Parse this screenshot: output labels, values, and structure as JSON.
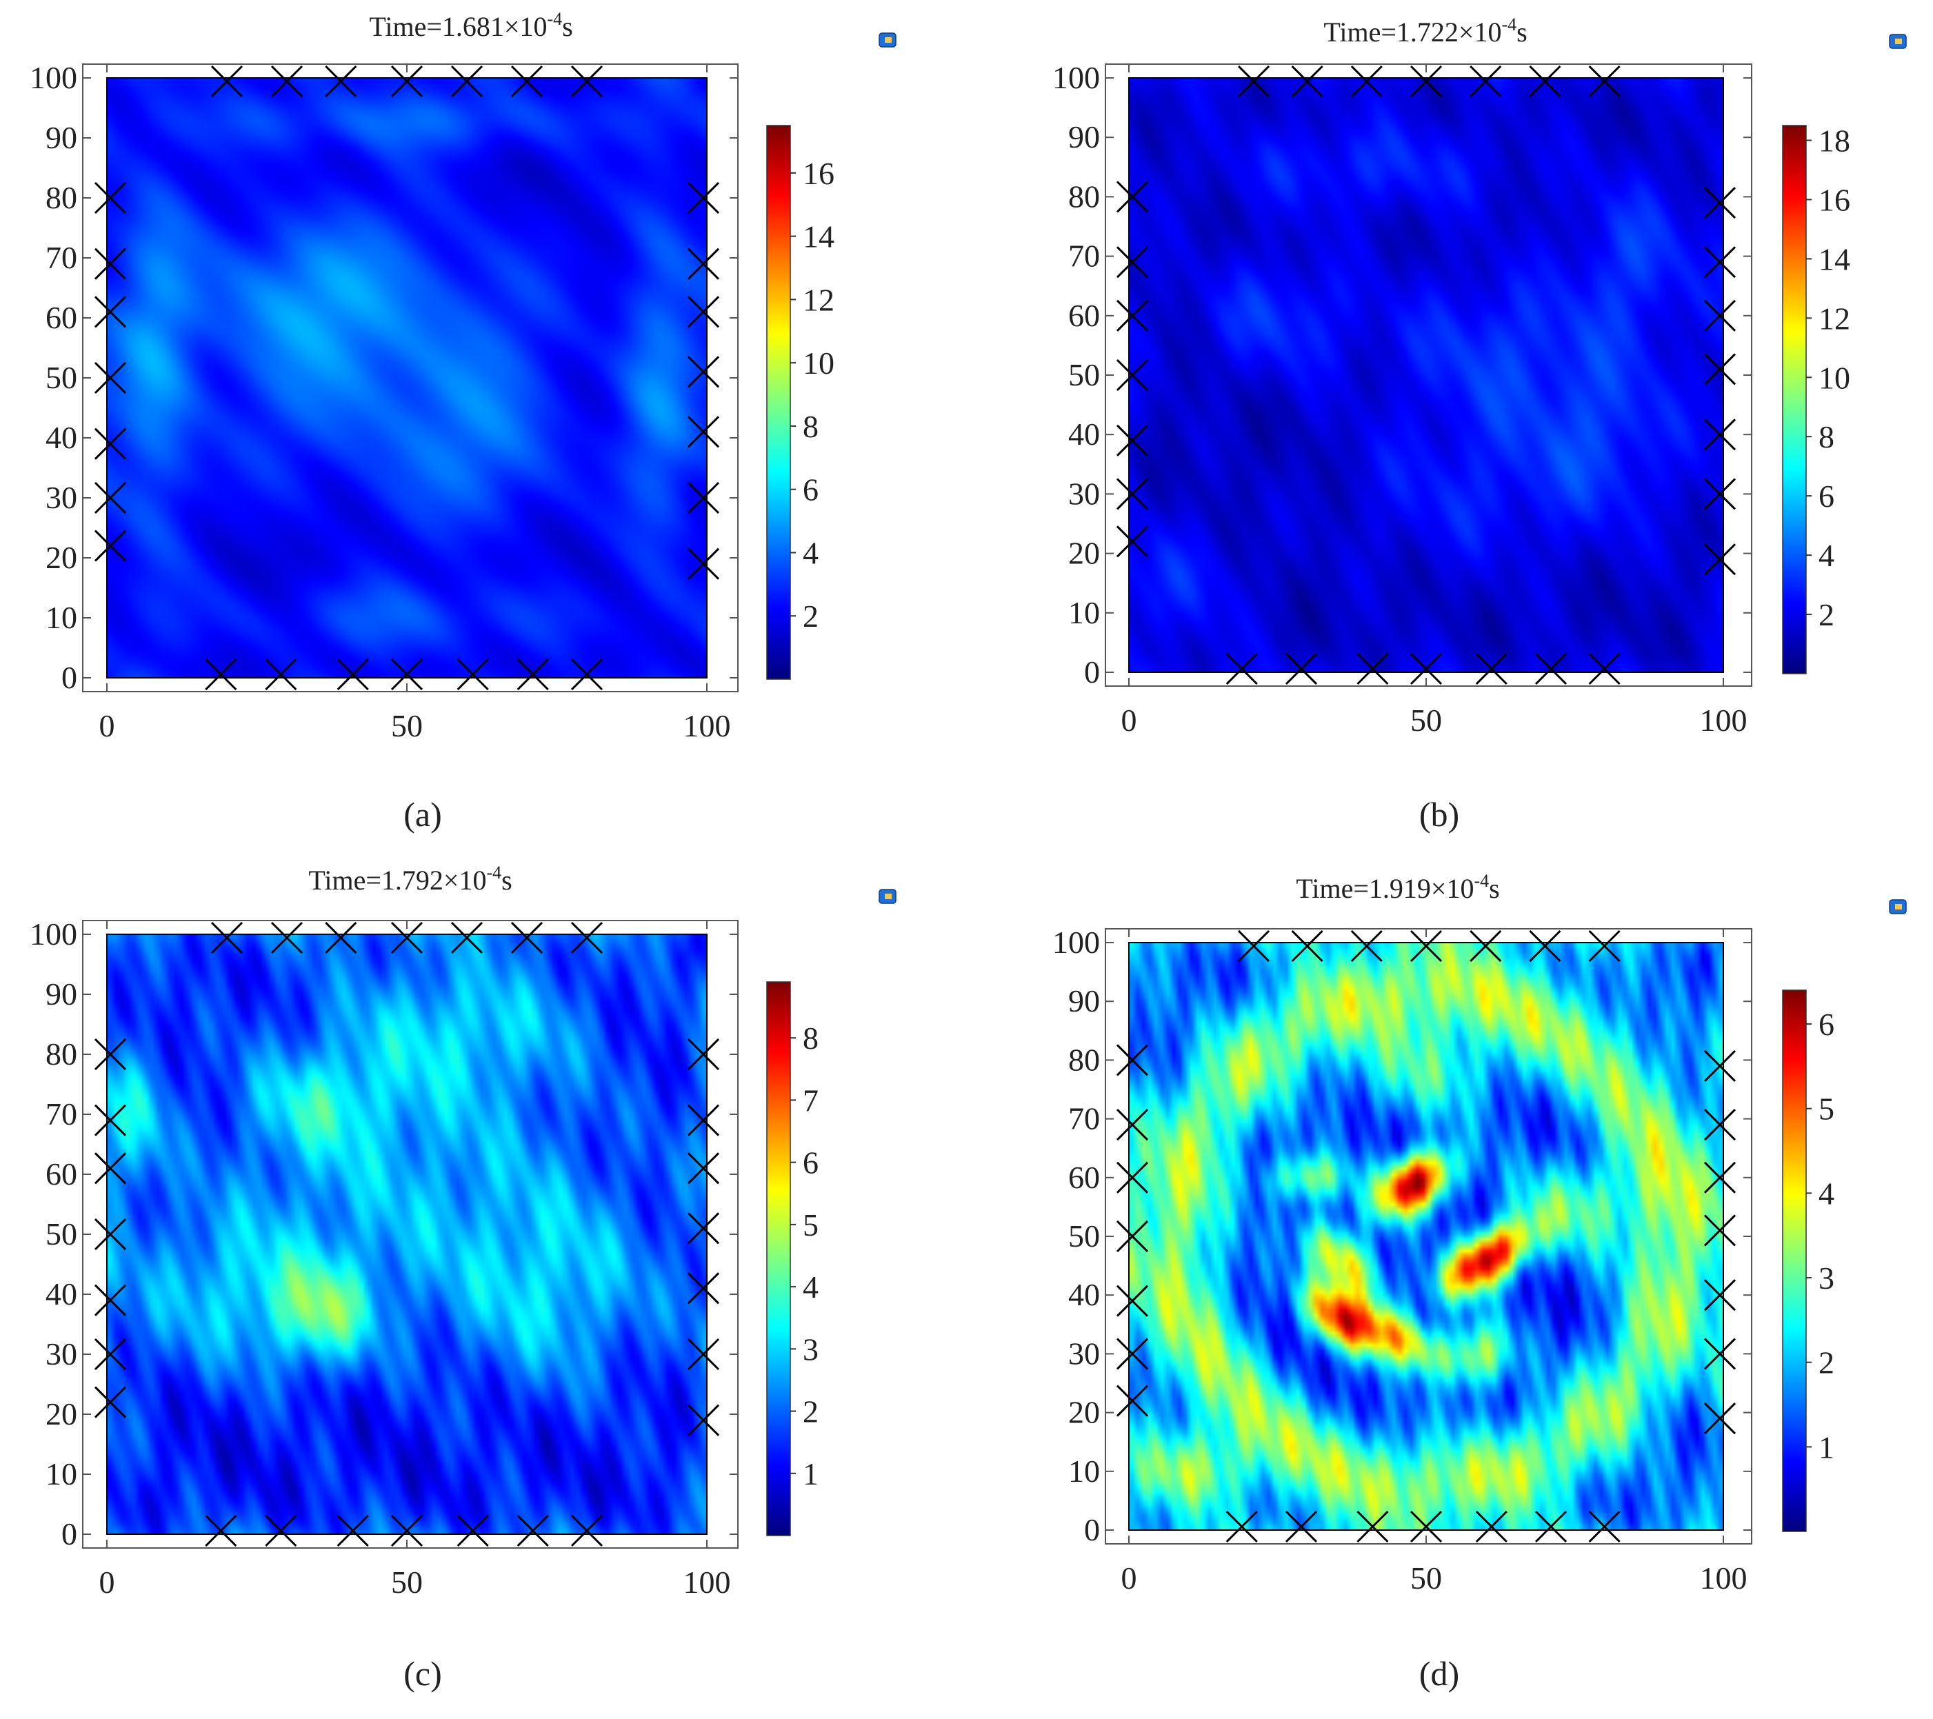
{
  "panels": [
    {
      "label": "(a)",
      "time_text": "Time=1.681×10",
      "time_exp": "-4",
      "time_unit": "s",
      "chart_data": {
        "type": "heatmap",
        "xlim": [
          0,
          100
        ],
        "ylim": [
          0,
          100
        ],
        "x_ticks": [
          0,
          50,
          100
        ],
        "y_ticks": [
          0,
          10,
          20,
          30,
          40,
          50,
          60,
          70,
          80,
          90,
          100
        ],
        "colorbar": {
          "min": 0,
          "max": 17.5,
          "ticks": [
            2,
            4,
            6,
            8,
            10,
            12,
            14,
            16
          ]
        },
        "value_range": [
          0,
          17.5
        ],
        "texture_seed": 1,
        "blobs": [
          {
            "x": 45,
            "y": 55,
            "sx": 24,
            "sy": 20,
            "v": 3.2
          },
          {
            "x": 30,
            "y": 65,
            "sx": 10,
            "sy": 8,
            "v": 1.5
          },
          {
            "x": 65,
            "y": 35,
            "sx": 10,
            "sy": 10,
            "v": 1.5
          },
          {
            "x": 50,
            "y": 10,
            "sx": 25,
            "sy": 5,
            "v": 2.0
          },
          {
            "x": 8,
            "y": 50,
            "sx": 5,
            "sy": 30,
            "v": 2.5
          },
          {
            "x": 92,
            "y": 50,
            "sx": 5,
            "sy": 30,
            "v": 2.5
          },
          {
            "x": 50,
            "y": 93,
            "sx": 30,
            "sy": 4,
            "v": 2.0
          }
        ],
        "top_markers": [
          20,
          30,
          39,
          50,
          60,
          70,
          80
        ],
        "bottom_markers": [
          19,
          29,
          41,
          50,
          61,
          71,
          80
        ],
        "left_markers": [
          80,
          69,
          61,
          50,
          39,
          30,
          22
        ],
        "right_markers": [
          80,
          69,
          61,
          51,
          41,
          30,
          19
        ]
      }
    },
    {
      "label": "(b)",
      "time_text": "Time=1.722×10",
      "time_exp": "-4",
      "time_unit": "s",
      "chart_data": {
        "type": "heatmap",
        "xlim": [
          0,
          100
        ],
        "ylim": [
          0,
          100
        ],
        "x_ticks": [
          0,
          50,
          100
        ],
        "y_ticks": [
          0,
          10,
          20,
          30,
          40,
          50,
          60,
          70,
          80,
          90,
          100
        ],
        "colorbar": {
          "min": 0,
          "max": 18.5,
          "ticks": [
            2,
            4,
            6,
            8,
            10,
            12,
            14,
            16,
            18
          ]
        },
        "value_range": [
          0,
          18.5
        ],
        "texture_seed": 2,
        "blobs": [
          {
            "x": 25,
            "y": 60,
            "sx": 10,
            "sy": 8,
            "v": 2.0
          },
          {
            "x": 60,
            "y": 55,
            "sx": 12,
            "sy": 10,
            "v": 2.0
          },
          {
            "x": 80,
            "y": 40,
            "sx": 10,
            "sy": 12,
            "v": 2.0
          },
          {
            "x": 85,
            "y": 70,
            "sx": 8,
            "sy": 10,
            "v": 2.0
          },
          {
            "x": 40,
            "y": 85,
            "sx": 20,
            "sy": 6,
            "v": 1.8
          },
          {
            "x": 55,
            "y": 30,
            "sx": 15,
            "sy": 10,
            "v": 1.5
          },
          {
            "x": 10,
            "y": 15,
            "sx": 8,
            "sy": 8,
            "v": 1.5
          }
        ],
        "top_markers": [
          21,
          30,
          40,
          50,
          60,
          70,
          80
        ],
        "bottom_markers": [
          19,
          29,
          41,
          50,
          61,
          71,
          80
        ],
        "left_markers": [
          80,
          69,
          60,
          50,
          39,
          30,
          22
        ],
        "right_markers": [
          79,
          69,
          60,
          51,
          40,
          30,
          19
        ]
      }
    },
    {
      "label": "(c)",
      "time_text": "Time=1.792×10",
      "time_exp": "-4",
      "time_unit": "s",
      "chart_data": {
        "type": "heatmap",
        "xlim": [
          0,
          100
        ],
        "ylim": [
          0,
          100
        ],
        "x_ticks": [
          0,
          50,
          100
        ],
        "y_ticks": [
          0,
          10,
          20,
          30,
          40,
          50,
          60,
          70,
          80,
          90,
          100
        ],
        "colorbar": {
          "min": 0,
          "max": 8.9,
          "ticks": [
            1,
            2,
            3,
            4,
            5,
            6,
            7,
            8
          ]
        },
        "value_range": [
          0,
          8.9
        ],
        "texture_seed": 3,
        "blobs": [
          {
            "x": 36,
            "y": 37,
            "sx": 6,
            "sy": 6,
            "v": 2.2
          },
          {
            "x": 20,
            "y": 40,
            "sx": 12,
            "sy": 10,
            "v": 1.5
          },
          {
            "x": 50,
            "y": 60,
            "sx": 25,
            "sy": 20,
            "v": 1.6
          },
          {
            "x": 35,
            "y": 72,
            "sx": 8,
            "sy": 6,
            "v": 1.4
          },
          {
            "x": 75,
            "y": 40,
            "sx": 12,
            "sy": 12,
            "v": 1.5
          },
          {
            "x": 60,
            "y": 85,
            "sx": 15,
            "sy": 8,
            "v": 1.4
          },
          {
            "x": 5,
            "y": 70,
            "sx": 4,
            "sy": 8,
            "v": 1.5
          }
        ],
        "top_markers": [
          20,
          30,
          39,
          50,
          60,
          70,
          80
        ],
        "bottom_markers": [
          19,
          29,
          41,
          50,
          61,
          71,
          80
        ],
        "left_markers": [
          80,
          69,
          61,
          50,
          39,
          30,
          22
        ],
        "right_markers": [
          80,
          69,
          61,
          51,
          41,
          30,
          19
        ]
      }
    },
    {
      "label": "(d)",
      "time_text": "Time=1.919×10",
      "time_exp": "-4",
      "time_unit": "s",
      "chart_data": {
        "type": "heatmap",
        "xlim": [
          0,
          100
        ],
        "ylim": [
          0,
          100
        ],
        "x_ticks": [
          0,
          50,
          100
        ],
        "y_ticks": [
          0,
          10,
          20,
          30,
          40,
          50,
          60,
          70,
          80,
          90,
          100
        ],
        "colorbar": {
          "min": 0,
          "max": 6.4,
          "ticks": [
            1,
            2,
            3,
            4,
            5,
            6
          ]
        },
        "value_range": [
          0,
          6.4
        ],
        "texture_seed": 4,
        "ring": {
          "cx": 50,
          "cy": 50,
          "r": 42,
          "w": 6,
          "v": 2.2
        },
        "blobs": [
          {
            "x": 48,
            "y": 59,
            "sx": 5,
            "sy": 3.2,
            "v": 5.2,
            "rot": -35
          },
          {
            "x": 60,
            "y": 46,
            "sx": 6,
            "sy": 3,
            "v": 5.0,
            "rot": -35
          },
          {
            "x": 36,
            "y": 46,
            "sx": 6,
            "sy": 3,
            "v": 3.3,
            "rot": 45
          },
          {
            "x": 35,
            "y": 36,
            "sx": 5,
            "sy": 2.8,
            "v": 3.5,
            "rot": 45
          },
          {
            "x": 45,
            "y": 33,
            "sx": 7,
            "sy": 3,
            "v": 3.3,
            "rot": 30
          },
          {
            "x": 30,
            "y": 60,
            "sx": 5,
            "sy": 3,
            "v": 2.2
          },
          {
            "x": 59,
            "y": 30,
            "sx": 4,
            "sy": 4,
            "v": 2.3
          },
          {
            "x": 10,
            "y": 10,
            "sx": 7,
            "sy": 5,
            "v": 2.0
          },
          {
            "x": 75,
            "y": 55,
            "sx": 8,
            "sy": 6,
            "v": 1.8
          },
          {
            "x": 50,
            "y": 78,
            "sx": 10,
            "sy": 6,
            "v": 1.5
          }
        ],
        "top_markers": [
          21,
          30,
          40,
          50,
          60,
          70,
          80
        ],
        "bottom_markers": [
          19,
          29,
          41,
          50,
          61,
          71,
          80
        ],
        "left_markers": [
          80,
          69,
          60,
          50,
          39,
          30,
          22
        ],
        "right_markers": [
          79,
          69,
          60,
          51,
          40,
          30,
          19
        ]
      }
    }
  ]
}
